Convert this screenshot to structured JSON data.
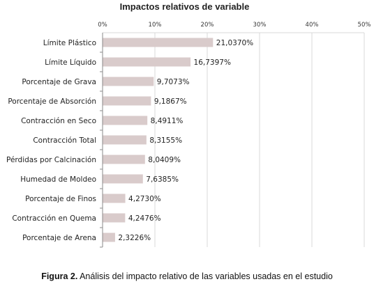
{
  "chart_data": {
    "type": "bar",
    "orientation": "horizontal",
    "title": "Impactos relativos de variable",
    "xlim": [
      0,
      50
    ],
    "x_ticks": [
      "0%",
      "10%",
      "20%",
      "30%",
      "40%",
      "50%"
    ],
    "x_tick_values": [
      0,
      10,
      20,
      30,
      40,
      50
    ],
    "categories": [
      "Límite Plástico",
      "Límite Líquido",
      "Porcentaje de Grava",
      "Porcentaje de Absorción",
      "Contracción en Seco",
      "Contracción Total",
      "Pérdidas por Calcinación",
      "Humedad de Moldeo",
      "Porcentaje de Finos",
      "Contracción en Quema",
      "Porcentaje de Arena"
    ],
    "values": [
      21.037,
      16.7397,
      9.7073,
      9.1867,
      8.4911,
      8.3155,
      8.0409,
      7.6385,
      4.273,
      4.2476,
      2.3226
    ],
    "value_labels": [
      "21,0370%",
      "16,7397%",
      "9,7073%",
      "9,1867%",
      "8,4911%",
      "8,3155%",
      "8,0409%",
      "7,6385%",
      "4,2730%",
      "4,2476%",
      "2,3226%"
    ],
    "grid": true,
    "bar_color": "#d9cbcb"
  },
  "caption": {
    "label": "Figura 2.",
    "text": "Análisis del impacto relativo de las variables usadas en el estudio"
  }
}
